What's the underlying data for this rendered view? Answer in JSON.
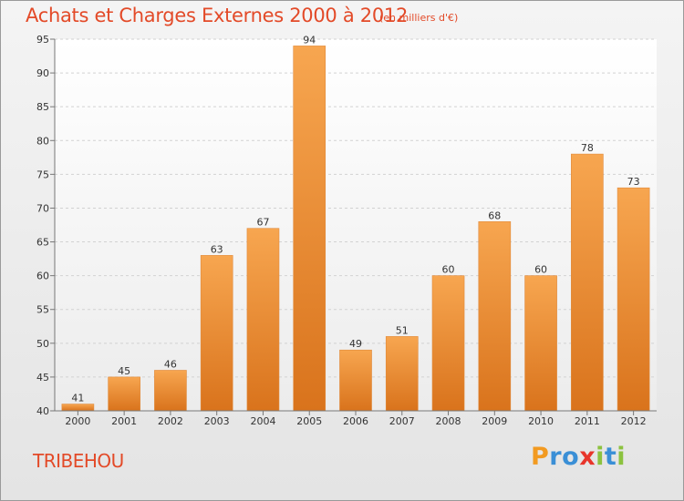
{
  "header": {
    "title": "Achats et Charges Externes 2000 à 2012",
    "subtitle": "(en milliers d'€)"
  },
  "footer": {
    "commune": "TRIBEHOU",
    "logo_letters": [
      {
        "char": "P",
        "color": "#f29a21"
      },
      {
        "char": "r",
        "color": "#3a8fd6"
      },
      {
        "char": "o",
        "color": "#3a8fd6"
      },
      {
        "char": "x",
        "color": "#e8352b"
      },
      {
        "char": "i",
        "color": "#8cc23f"
      },
      {
        "char": "t",
        "color": "#3a8fd6"
      },
      {
        "char": "i",
        "color": "#8cc23f"
      }
    ]
  },
  "chart_data": {
    "type": "bar",
    "title": "Achats et Charges Externes 2000 à 2012",
    "subtitle": "(en milliers d'€)",
    "categories": [
      "2000",
      "2001",
      "2002",
      "2003",
      "2004",
      "2005",
      "2006",
      "2007",
      "2008",
      "2009",
      "2010",
      "2011",
      "2012"
    ],
    "values": [
      41,
      45,
      46,
      63,
      67,
      94,
      49,
      51,
      60,
      68,
      60,
      78,
      73
    ],
    "ylim": [
      40,
      95
    ],
    "yticks": [
      40,
      45,
      50,
      55,
      60,
      65,
      70,
      75,
      80,
      85,
      90,
      95
    ],
    "grid": true,
    "bar_color": "#f0852b",
    "bar_color_top": "#f7a650",
    "bar_color_bottom": "#d9731c"
  }
}
